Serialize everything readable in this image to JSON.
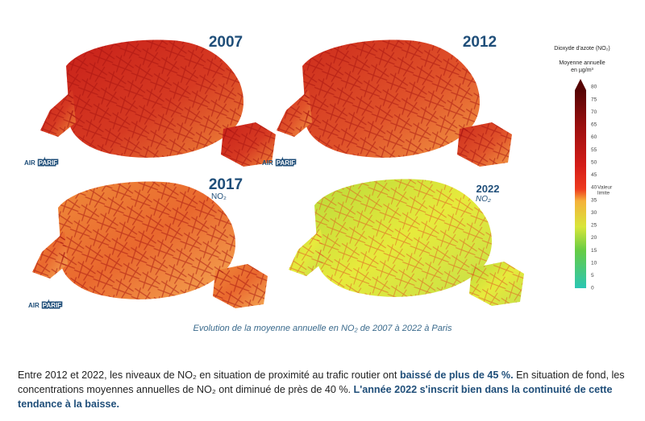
{
  "maps": [
    {
      "year": "2007",
      "logo_left": "AIR",
      "logo_right": "PARIF"
    },
    {
      "year": "2012",
      "logo_left": "AIR",
      "logo_right": "PARIF"
    },
    {
      "year": "2017",
      "pollutant": "NO₂",
      "logo_left": "AIR",
      "logo_right": "PARIF"
    },
    {
      "year": "2022",
      "pollutant": "NO₂"
    }
  ],
  "legend": {
    "title": "Dioxyde d'azote (NO₂)",
    "subtitle_1": "Moyenne annuelle",
    "subtitle_2": "en µg/m³",
    "ticks": [
      80,
      75,
      70,
      65,
      60,
      55,
      50,
      45,
      40,
      35,
      30,
      25,
      20,
      15,
      10,
      5,
      0
    ],
    "limit_label_1": "Valeur",
    "limit_label_2": "limite"
  },
  "caption": "Evolution de la moyenne annuelle en NO₂ de 2007 à 2022 à Paris",
  "paragraph": [
    {
      "text": "Entre 2012 et 2022, les niveaux de NO₂ en situation de proximité au trafic routier ont ",
      "bold": false
    },
    {
      "text": "baissé de plus de 45 %.",
      "bold": true
    },
    {
      "text": " En situation de fond, les concentrations moyennes annuelles de NO₂ ont diminué de près de 40 %. ",
      "bold": false
    },
    {
      "text": "L'année 2022 s'inscrit bien dans la continuité de cette tendance à la baisse.",
      "bold": true
    }
  ]
}
